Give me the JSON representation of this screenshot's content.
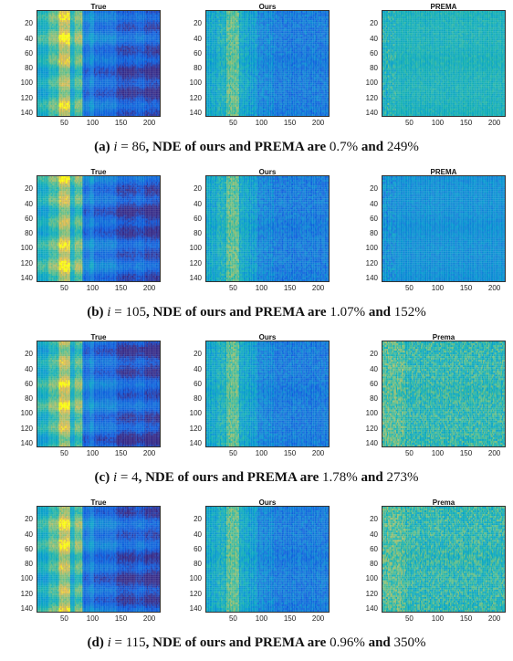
{
  "figures": [
    {
      "caption": {
        "label": "(a)",
        "var": "i",
        "eq": " = ",
        "idx": "86",
        "mid": ", NDE of ours and PREMA are ",
        "v1": "0.7%",
        "and": " and ",
        "v2": "249%"
      },
      "panels": [
        "True",
        "Ours",
        "PREMA"
      ]
    },
    {
      "caption": {
        "label": "(b)",
        "var": "i",
        "eq": " = ",
        "idx": "105",
        "mid": ", NDE of ours and PREMA are ",
        "v1": "1.07%",
        "and": " and ",
        "v2": "152%"
      },
      "panels": [
        "True",
        "Ours",
        "PREMA"
      ]
    },
    {
      "caption": {
        "label": "(c)",
        "var": "i",
        "eq": " = ",
        "idx": "4",
        "mid": ", NDE of ours and PREMA are ",
        "v1": "1.78%",
        "and": " and ",
        "v2": "273%"
      },
      "panels": [
        "True",
        "Ours",
        "Prema"
      ]
    },
    {
      "caption": {
        "label": "(d)",
        "var": "i",
        "eq": " = ",
        "idx": "115",
        "mid": ", NDE of ours and PREMA are ",
        "v1": "0.96%",
        "and": " and ",
        "v2": "350%"
      },
      "panels": [
        "True",
        "Ours",
        "Prema"
      ]
    }
  ],
  "chart_data": {
    "type": "heatmap",
    "colormap": "parula",
    "xticks": [
      "50",
      "100",
      "150",
      "200"
    ],
    "yticks": [
      "20",
      "40",
      "60",
      "80",
      "100",
      "120",
      "140"
    ],
    "xlim": [
      1,
      220
    ],
    "ylim": [
      1,
      145
    ]
  }
}
